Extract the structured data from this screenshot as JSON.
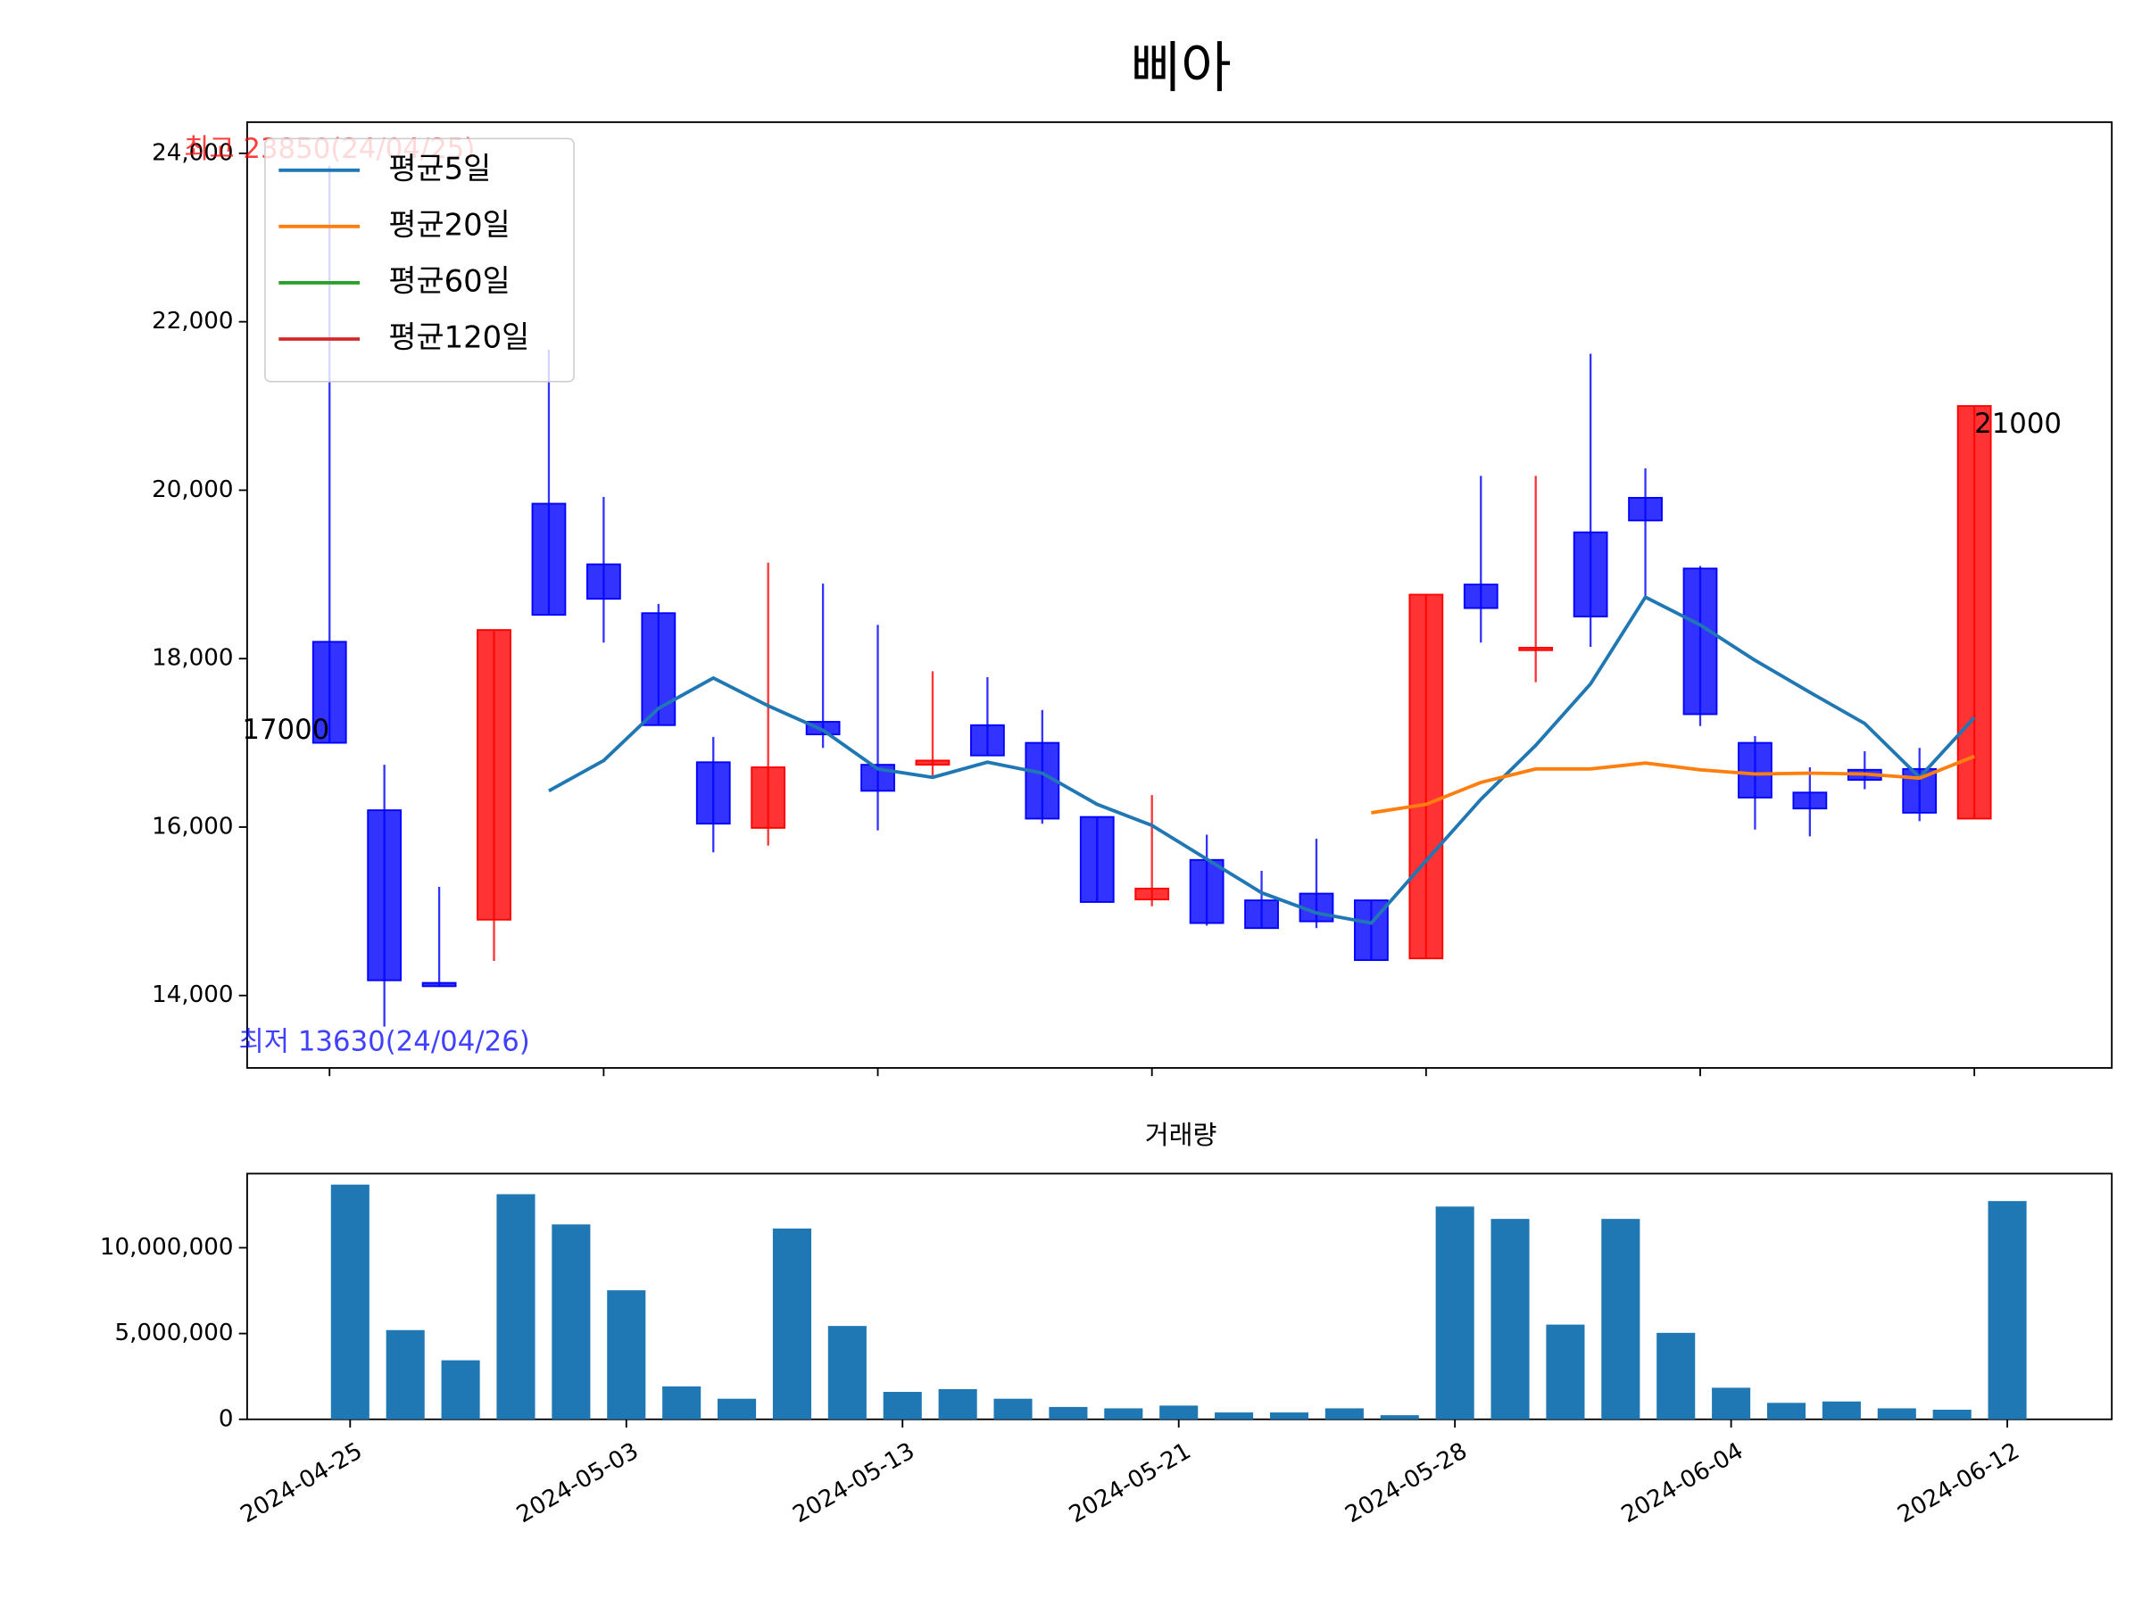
{
  "chart_data": [
    {
      "type": "candlestick",
      "title": "삐아",
      "open": [
        18200,
        16200,
        14150,
        14900,
        19840,
        19120,
        18540,
        16770,
        15990,
        17250,
        16740,
        16740,
        17210,
        17000,
        16120,
        15140,
        15610,
        15130,
        15210,
        15130,
        14440,
        18880,
        18100,
        19500,
        19910,
        19070,
        17000,
        16410,
        16680,
        16690,
        16100
      ],
      "high": [
        23850,
        16740,
        15290,
        18340,
        21670,
        19920,
        18650,
        17070,
        19140,
        18890,
        18400,
        17850,
        17780,
        17390,
        16120,
        16380,
        15910,
        15480,
        15860,
        15130,
        18760,
        20170,
        20170,
        21620,
        20260,
        19100,
        17080,
        16710,
        16900,
        16940,
        21000
      ],
      "low": [
        17000,
        13630,
        14100,
        14410,
        18520,
        18190,
        17210,
        15700,
        15780,
        16940,
        15960,
        16610,
        16850,
        16040,
        15110,
        15060,
        14830,
        14800,
        14800,
        14420,
        14440,
        18190,
        17720,
        18140,
        18730,
        17200,
        15970,
        15890,
        16450,
        16070,
        16100
      ],
      "close": [
        17000,
        14180,
        14110,
        18340,
        18520,
        18710,
        17210,
        16040,
        16710,
        17100,
        16430,
        16790,
        16850,
        16100,
        15110,
        15270,
        14860,
        14800,
        14880,
        14420,
        18760,
        18600,
        18130,
        18500,
        19640,
        17340,
        16350,
        16220,
        16560,
        16170,
        21000
      ],
      "up_color": "#ff0000",
      "down_color": "#0000ff",
      "series": [
        {
          "name": "평균5일",
          "color": "#1f77b4",
          "values": [
            null,
            null,
            null,
            null,
            16430,
            16790,
            17410,
            17770,
            17440,
            17150,
            16690,
            16590,
            16770,
            16640,
            16270,
            16020,
            15620,
            15220,
            14980,
            14860,
            15600,
            16330,
            16970,
            17700,
            18730,
            18400,
            17980,
            17600,
            17230,
            16590,
            17300
          ]
        },
        {
          "name": "평균20일",
          "color": "#ff7f0e",
          "values": [
            null,
            null,
            null,
            null,
            null,
            null,
            null,
            null,
            null,
            null,
            null,
            null,
            null,
            null,
            null,
            null,
            null,
            null,
            null,
            16170,
            16270,
            16530,
            16690,
            16690,
            16760,
            16680,
            16630,
            16640,
            16630,
            16580,
            16840
          ]
        },
        {
          "name": "평균60일",
          "color": "#2ca02c",
          "values": [
            null,
            null,
            null,
            null,
            null,
            null,
            null,
            null,
            null,
            null,
            null,
            null,
            null,
            null,
            null,
            null,
            null,
            null,
            null,
            null,
            null,
            null,
            null,
            null,
            null,
            null,
            null,
            null,
            null,
            null,
            null
          ]
        },
        {
          "name": "평균120일",
          "color": "#d62728",
          "values": [
            null,
            null,
            null,
            null,
            null,
            null,
            null,
            null,
            null,
            null,
            null,
            null,
            null,
            null,
            null,
            null,
            null,
            null,
            null,
            null,
            null,
            null,
            null,
            null,
            null,
            null,
            null,
            null,
            null,
            null,
            null
          ]
        }
      ],
      "legend": "upper left",
      "annotations": [
        {
          "text": "최고 23850(24/04/25)",
          "color": "#ff0000"
        },
        {
          "text": "최저 13630(24/04/26)",
          "color": "#0000ff"
        },
        {
          "text": "17000",
          "color": "#000000"
        },
        {
          "text": "21000",
          "color": "#000000"
        }
      ],
      "ylim": [
        13140,
        24370
      ],
      "yticks": [
        {
          "value": 14000,
          "label": "14,000"
        },
        {
          "value": 16000,
          "label": "16,000"
        },
        {
          "value": 18000,
          "label": "18,000"
        },
        {
          "value": 20000,
          "label": "20,000"
        },
        {
          "value": 22000,
          "label": "22,000"
        },
        {
          "value": 24000,
          "label": "24,000"
        }
      ]
    },
    {
      "type": "bar",
      "title": "거래량",
      "categories": [
        "2024-04-25",
        null,
        null,
        null,
        null,
        "2024-05-03",
        null,
        null,
        null,
        null,
        "2024-05-13",
        null,
        null,
        null,
        null,
        "2024-05-21",
        null,
        null,
        null,
        null,
        "2024-05-28",
        null,
        null,
        null,
        null,
        "2024-06-04",
        null,
        null,
        null,
        null,
        "2024-06-12"
      ],
      "values": [
        13680000,
        5200000,
        3440000,
        13120000,
        11360000,
        7520000,
        1920000,
        1200000,
        11120000,
        5440000,
        1600000,
        1760000,
        1200000,
        720000,
        640000,
        800000,
        400000,
        400000,
        640000,
        240000,
        12400000,
        11680000,
        5520000,
        11680000,
        5040000,
        1840000,
        960000,
        1040000,
        640000,
        560000,
        12720000
      ],
      "color": "#1f77b4",
      "ylim": [
        0,
        14320000
      ],
      "yticks": [
        0,
        {
          "value": 5000000,
          "label": "5,000,000"
        },
        {
          "value": 10000000,
          "label": "10,000,000"
        }
      ]
    }
  ]
}
